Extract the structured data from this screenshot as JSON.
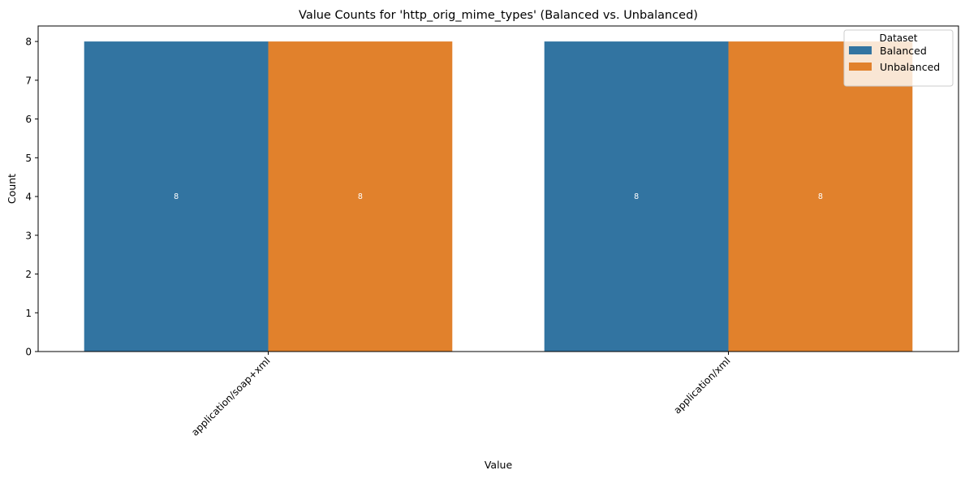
{
  "chart_data": {
    "type": "bar",
    "title": "Value Counts for 'http_orig_mime_types' (Balanced vs. Unbalanced)",
    "xlabel": "Value",
    "ylabel": "Count",
    "categories": [
      "application/soap+xml",
      "application/xml"
    ],
    "series": [
      {
        "name": "Balanced",
        "values": [
          8,
          8
        ],
        "color": "#3274a1"
      },
      {
        "name": "Unbalanced",
        "values": [
          8,
          8
        ],
        "color": "#e1812c"
      }
    ],
    "ylim": [
      0,
      8.4
    ],
    "yticks": [
      0,
      1,
      2,
      3,
      4,
      5,
      6,
      7,
      8
    ],
    "legend": {
      "title": "Dataset",
      "position": "top-right"
    },
    "grid": false
  }
}
